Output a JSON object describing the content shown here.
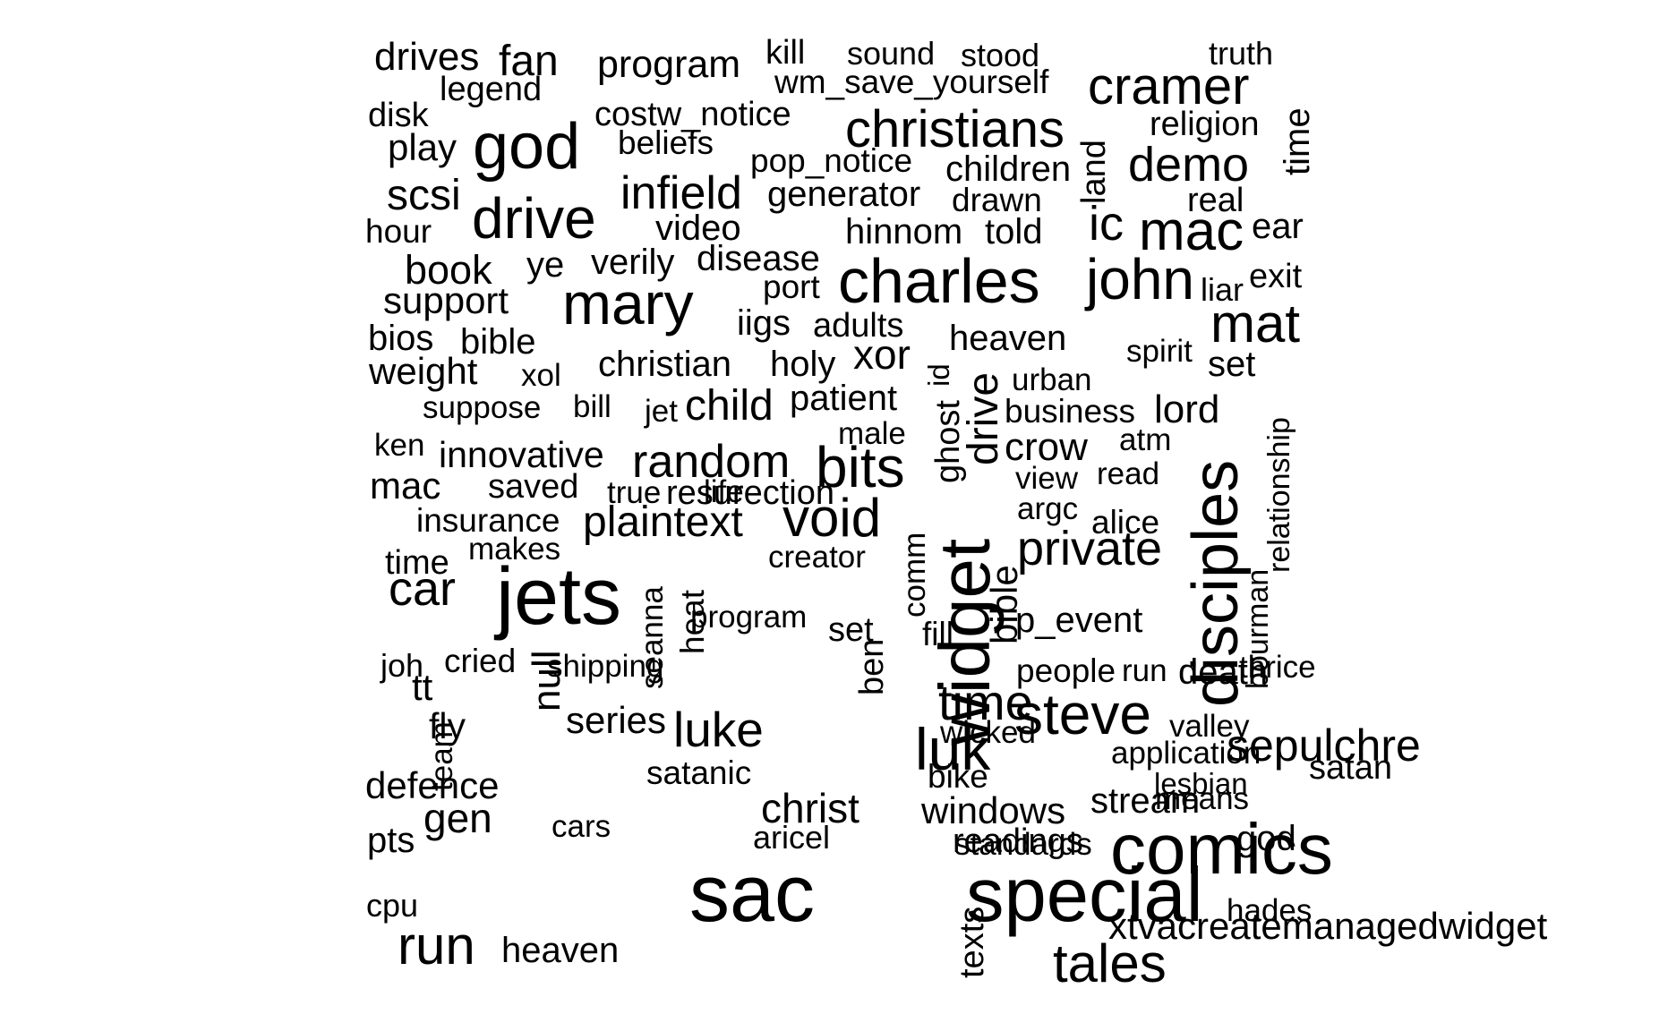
{
  "cloud": {
    "text_color": "#000000",
    "background": "#ffffff",
    "words": [
      {
        "text": "drives",
        "rot": 0
      },
      {
        "text": "fan",
        "rot": 0
      },
      {
        "text": "program",
        "rot": 0
      },
      {
        "text": "kill",
        "rot": 0
      },
      {
        "text": "sound",
        "rot": 0
      },
      {
        "text": "stood",
        "rot": 0
      },
      {
        "text": "truth",
        "rot": 0
      },
      {
        "text": "legend",
        "rot": 0
      },
      {
        "text": "wm_save_yourself",
        "rot": 0
      },
      {
        "text": "cramer",
        "rot": 0
      },
      {
        "text": "disk",
        "rot": 0
      },
      {
        "text": "costw_notice",
        "rot": 0
      },
      {
        "text": "religion",
        "rot": 0
      },
      {
        "text": "play",
        "rot": 0
      },
      {
        "text": "god",
        "rot": 0
      },
      {
        "text": "beliefs",
        "rot": 0
      },
      {
        "text": "christians",
        "rot": 0
      },
      {
        "text": "land",
        "rot": -90
      },
      {
        "text": "time",
        "rot": -90
      },
      {
        "text": "pop_notice",
        "rot": 0
      },
      {
        "text": "children",
        "rot": 0
      },
      {
        "text": "demo",
        "rot": 0
      },
      {
        "text": "scsi",
        "rot": 0
      },
      {
        "text": "infield",
        "rot": 0
      },
      {
        "text": "generator",
        "rot": 0
      },
      {
        "text": "drawn",
        "rot": 0
      },
      {
        "text": "real",
        "rot": 0
      },
      {
        "text": "drive",
        "rot": 0
      },
      {
        "text": "hour",
        "rot": 0
      },
      {
        "text": "video",
        "rot": 0
      },
      {
        "text": "hinnom",
        "rot": 0
      },
      {
        "text": "told",
        "rot": 0
      },
      {
        "text": "ic",
        "rot": 0
      },
      {
        "text": "mac",
        "rot": 0
      },
      {
        "text": "ear",
        "rot": 0
      },
      {
        "text": "book",
        "rot": 0
      },
      {
        "text": "ye",
        "rot": 0
      },
      {
        "text": "verily",
        "rot": 0
      },
      {
        "text": "disease",
        "rot": 0
      },
      {
        "text": "charles",
        "rot": 0
      },
      {
        "text": "john",
        "rot": 0
      },
      {
        "text": "liar",
        "rot": 0
      },
      {
        "text": "exit",
        "rot": 0
      },
      {
        "text": "support",
        "rot": 0
      },
      {
        "text": "mary",
        "rot": 0
      },
      {
        "text": "port",
        "rot": 0
      },
      {
        "text": "iigs",
        "rot": 0
      },
      {
        "text": "adults",
        "rot": 0
      },
      {
        "text": "mat",
        "rot": 0
      },
      {
        "text": "bios",
        "rot": 0
      },
      {
        "text": "bible",
        "rot": 0
      },
      {
        "text": "heaven",
        "rot": 0
      },
      {
        "text": "spirit",
        "rot": 0
      },
      {
        "text": "xor",
        "rot": 0
      },
      {
        "text": "set",
        "rot": 0
      },
      {
        "text": "weight",
        "rot": 0
      },
      {
        "text": "xol",
        "rot": 0
      },
      {
        "text": "christian",
        "rot": 0
      },
      {
        "text": "holy",
        "rot": 0
      },
      {
        "text": "id",
        "rot": -90
      },
      {
        "text": "urban",
        "rot": 0
      },
      {
        "text": "suppose",
        "rot": 0
      },
      {
        "text": "bill",
        "rot": 0
      },
      {
        "text": "jet",
        "rot": 0
      },
      {
        "text": "child",
        "rot": 0
      },
      {
        "text": "patient",
        "rot": 0
      },
      {
        "text": "ghost",
        "rot": -90
      },
      {
        "text": "drive",
        "rot": -90
      },
      {
        "text": "business",
        "rot": 0
      },
      {
        "text": "lord",
        "rot": 0
      },
      {
        "text": "relationship",
        "rot": -90
      },
      {
        "text": "ken",
        "rot": 0
      },
      {
        "text": "innovative",
        "rot": 0
      },
      {
        "text": "male",
        "rot": 0
      },
      {
        "text": "crow",
        "rot": 0
      },
      {
        "text": "atm",
        "rot": 0
      },
      {
        "text": "random",
        "rot": 0
      },
      {
        "text": "bits",
        "rot": 0
      },
      {
        "text": "disciples",
        "rot": -90
      },
      {
        "text": "mac",
        "rot": 0
      },
      {
        "text": "saved",
        "rot": 0
      },
      {
        "text": "true",
        "rot": 0
      },
      {
        "text": "life",
        "rot": 0
      },
      {
        "text": "view",
        "rot": 0
      },
      {
        "text": "read",
        "rot": 0
      },
      {
        "text": "argc",
        "rot": 0
      },
      {
        "text": "insurance",
        "rot": 0
      },
      {
        "text": "plaintext",
        "rot": 0
      },
      {
        "text": "void",
        "rot": 0
      },
      {
        "text": "widget",
        "rot": -90
      },
      {
        "text": "alice",
        "rot": 0
      },
      {
        "text": "time",
        "rot": 0
      },
      {
        "text": "makes",
        "rot": 0
      },
      {
        "text": "creator",
        "rot": 0
      },
      {
        "text": "comm",
        "rot": -90
      },
      {
        "text": "private",
        "rot": 0
      },
      {
        "text": "car",
        "rot": 0
      },
      {
        "text": "jets",
        "rot": 0
      },
      {
        "text": "seanna",
        "rot": -90
      },
      {
        "text": "resurection",
        "rot": 0
      },
      {
        "text": "program",
        "rot": 0
      },
      {
        "text": "set",
        "rot": 0
      },
      {
        "text": "p_event",
        "rot": 0
      },
      {
        "text": "fill",
        "rot": 0
      },
      {
        "text": "bible",
        "rot": -90
      },
      {
        "text": "bourman",
        "rot": -90
      },
      {
        "text": "satan",
        "rot": 0
      },
      {
        "text": "cried",
        "rot": 0
      },
      {
        "text": "shipping",
        "rot": 0
      },
      {
        "text": "heat",
        "rot": -90
      },
      {
        "text": "death",
        "rot": 0
      },
      {
        "text": "joh",
        "rot": 0
      },
      {
        "text": "people",
        "rot": 0
      },
      {
        "text": "run",
        "rot": 0
      },
      {
        "text": "thrice",
        "rot": 0
      },
      {
        "text": "tt",
        "rot": 0
      },
      {
        "text": "null",
        "rot": -90
      },
      {
        "text": "ben",
        "rot": -90
      },
      {
        "text": "time",
        "rot": 0
      },
      {
        "text": "luk",
        "rot": 0
      },
      {
        "text": "wicked",
        "rot": 0
      },
      {
        "text": "steve",
        "rot": 0
      },
      {
        "text": "valley",
        "rot": 0
      },
      {
        "text": "fly",
        "rot": 0
      },
      {
        "text": "series",
        "rot": 0
      },
      {
        "text": "luke",
        "rot": 0
      },
      {
        "text": "sepulchre",
        "rot": 0
      },
      {
        "text": "application",
        "rot": 0
      },
      {
        "text": "defence",
        "rot": 0
      },
      {
        "text": "team",
        "rot": -90
      },
      {
        "text": "satanic",
        "rot": 0
      },
      {
        "text": "bike",
        "rot": 0
      },
      {
        "text": "stream",
        "rot": 0
      },
      {
        "text": "lesbian",
        "rot": 0
      },
      {
        "text": "gen",
        "rot": 0
      },
      {
        "text": "christ",
        "rot": 0
      },
      {
        "text": "windows",
        "rot": 0
      },
      {
        "text": "readings",
        "rot": 0
      },
      {
        "text": "means",
        "rot": 0
      },
      {
        "text": "pts",
        "rot": 0
      },
      {
        "text": "cars",
        "rot": 0
      },
      {
        "text": "aricel",
        "rot": 0
      },
      {
        "text": "standards",
        "rot": 0
      },
      {
        "text": "comics",
        "rot": 0
      },
      {
        "text": "god",
        "rot": 0
      },
      {
        "text": "sac",
        "rot": 0
      },
      {
        "text": "special",
        "rot": 0
      },
      {
        "text": "hades",
        "rot": 0
      },
      {
        "text": "cpu",
        "rot": 0
      },
      {
        "text": "xtvacreatemanagedwidget",
        "rot": 0
      },
      {
        "text": "run",
        "rot": 0
      },
      {
        "text": "heaven",
        "rot": 0
      },
      {
        "text": "texts",
        "rot": -90
      },
      {
        "text": "tales",
        "rot": 0
      }
    ]
  }
}
